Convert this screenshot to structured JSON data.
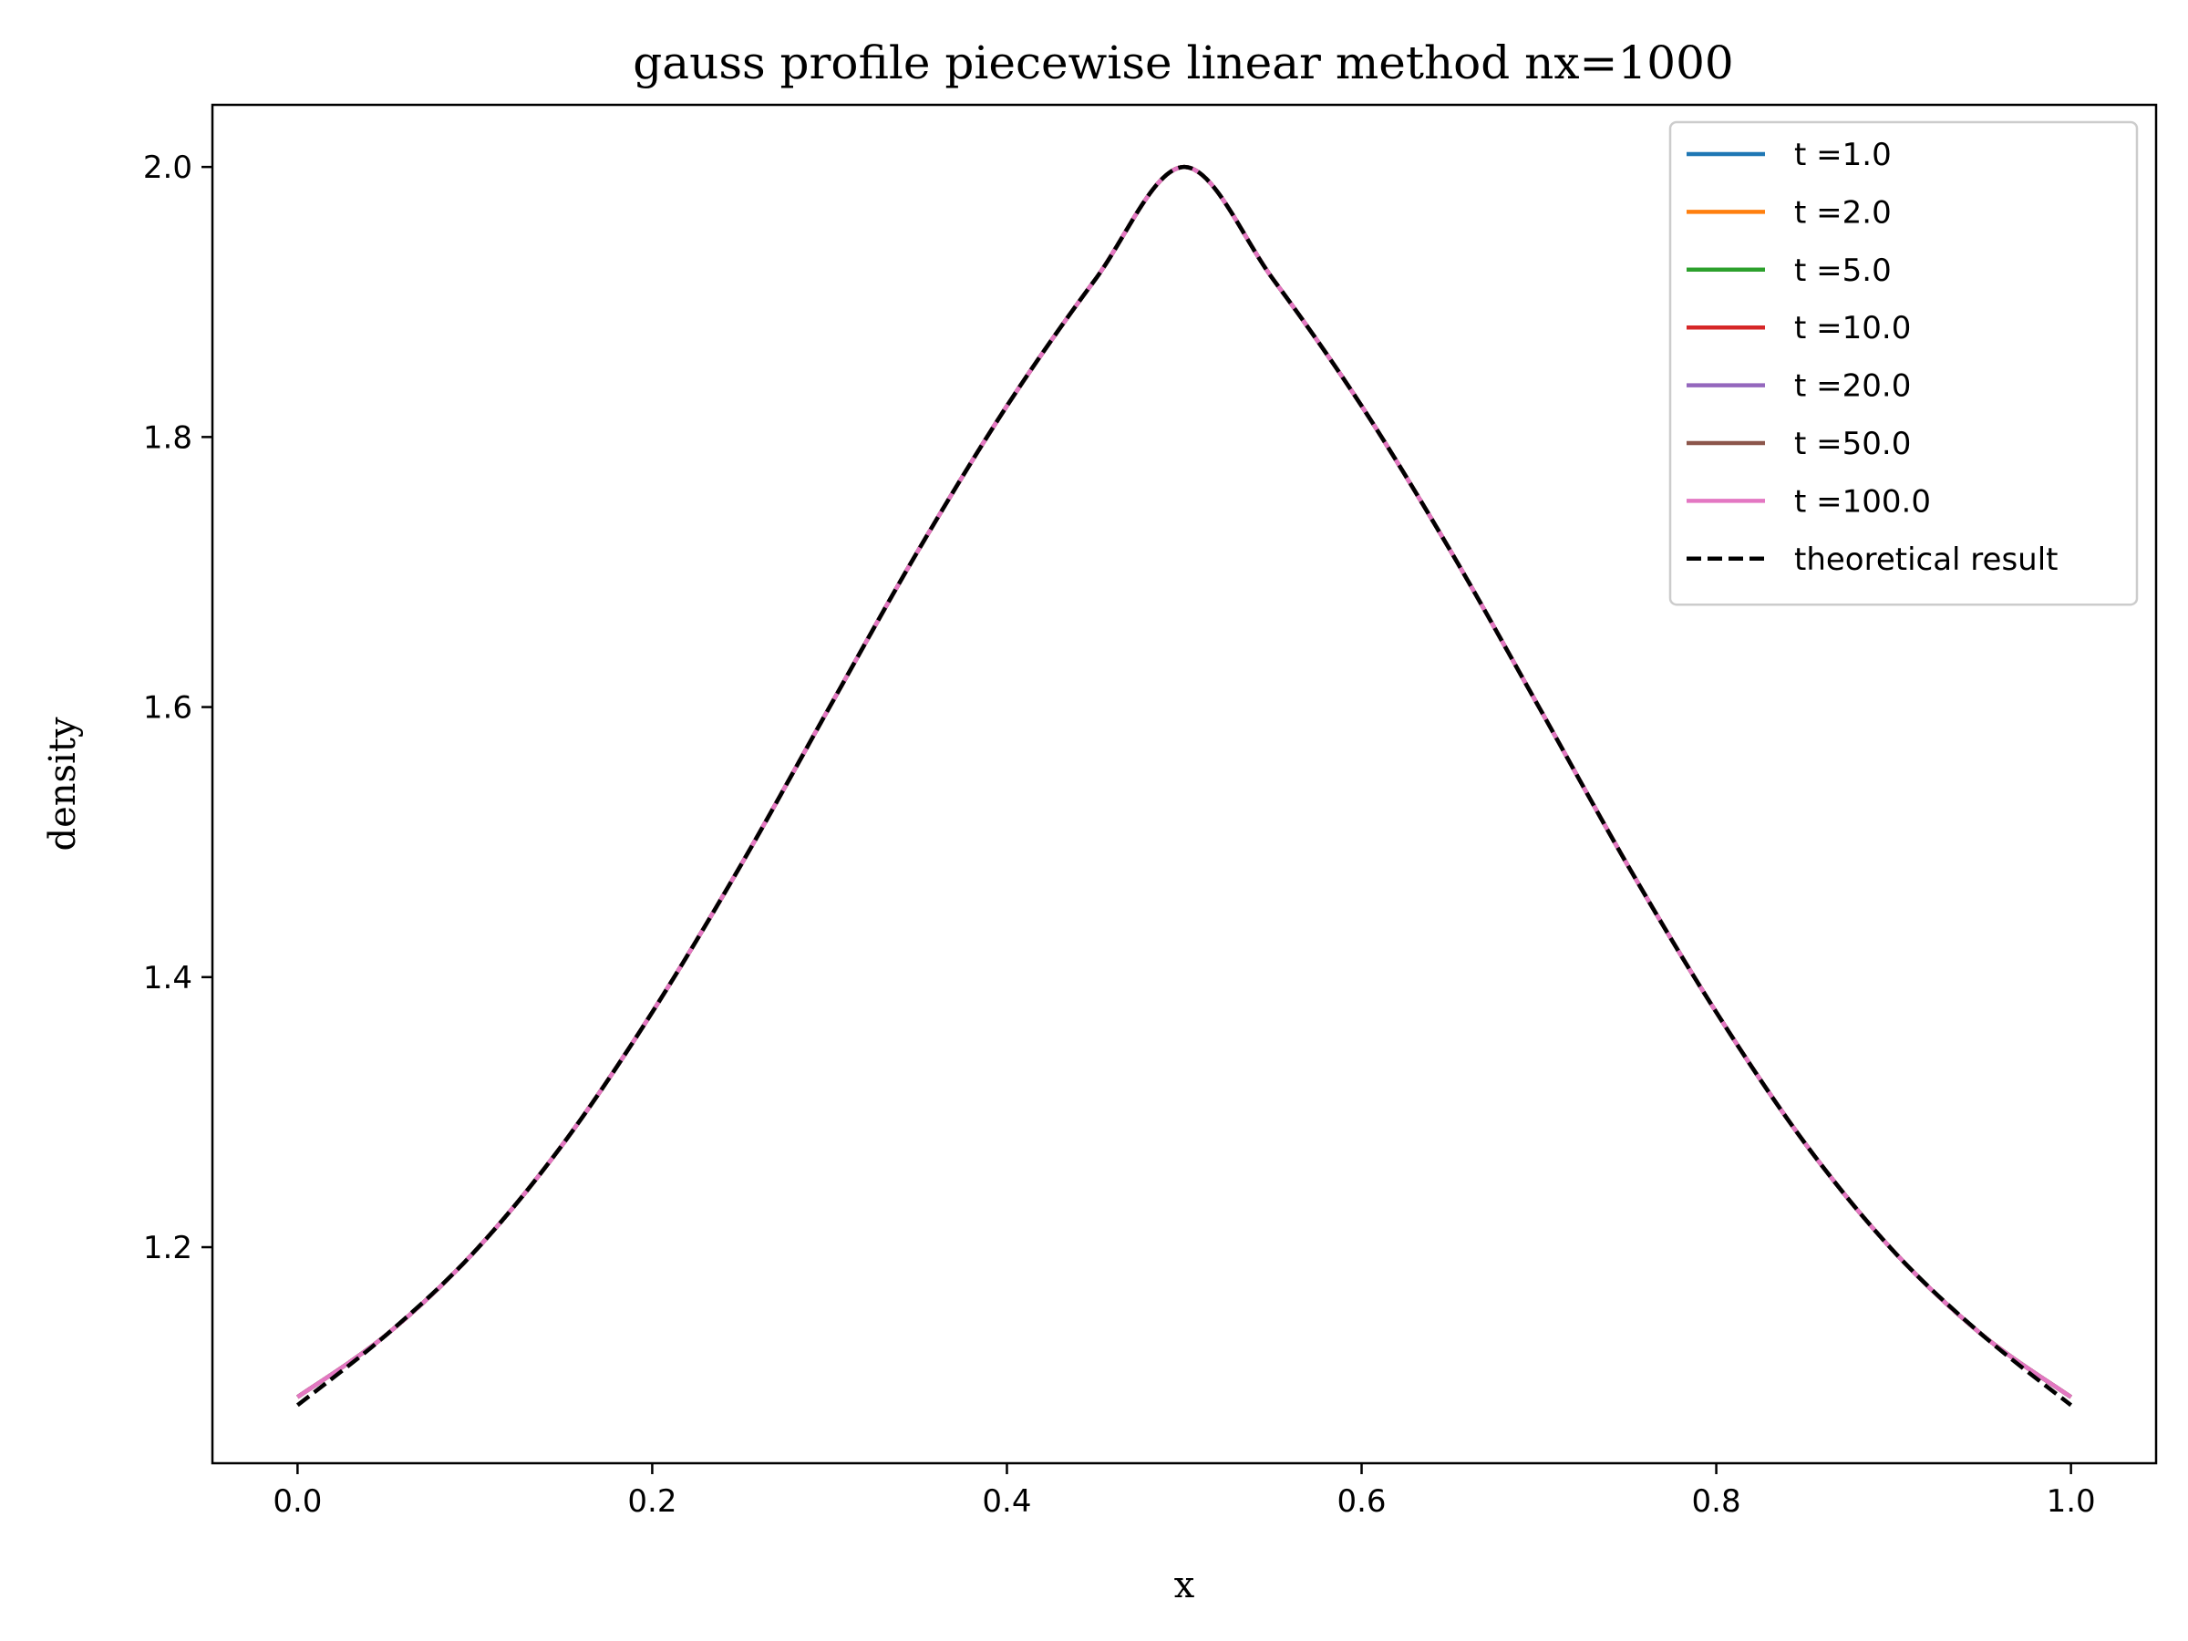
{
  "chart_data": {
    "type": "line",
    "title": "gauss profile piecewise linear method nx=1000",
    "xlabel": "x",
    "ylabel": "density",
    "xlim": [
      -0.048,
      1.048
    ],
    "ylim": [
      1.04,
      2.046
    ],
    "xticks": [
      "0.0",
      "0.2",
      "0.4",
      "0.6",
      "0.8",
      "1.0"
    ],
    "yticks": [
      "1.2",
      "1.4",
      "1.6",
      "1.8",
      "2.0"
    ],
    "grid": false,
    "legend_position": "top-right",
    "x": [
      0.0,
      0.05,
      0.1,
      0.15,
      0.2,
      0.25,
      0.3,
      0.35,
      0.4,
      0.45,
      0.5,
      0.55,
      0.6,
      0.65,
      0.7,
      0.75,
      0.8,
      0.85,
      0.9,
      0.95,
      1.0
    ],
    "series": [
      {
        "name": "t =1.0",
        "color": "#1f77b4",
        "style": "solid",
        "values": [
          1.089,
          1.135,
          1.197,
          1.277,
          1.374,
          1.483,
          1.6,
          1.716,
          1.823,
          1.917,
          2.0,
          1.917,
          1.823,
          1.716,
          1.6,
          1.483,
          1.374,
          1.277,
          1.197,
          1.135,
          1.089
        ]
      },
      {
        "name": "t =2.0",
        "color": "#ff7f0e",
        "style": "solid",
        "values": [
          1.089,
          1.135,
          1.197,
          1.277,
          1.374,
          1.483,
          1.6,
          1.716,
          1.823,
          1.917,
          2.0,
          1.917,
          1.823,
          1.716,
          1.6,
          1.483,
          1.374,
          1.277,
          1.197,
          1.135,
          1.089
        ]
      },
      {
        "name": "t =5.0",
        "color": "#2ca02c",
        "style": "solid",
        "values": [
          1.089,
          1.135,
          1.197,
          1.277,
          1.374,
          1.483,
          1.6,
          1.716,
          1.823,
          1.917,
          2.0,
          1.917,
          1.823,
          1.716,
          1.6,
          1.483,
          1.374,
          1.277,
          1.197,
          1.135,
          1.089
        ]
      },
      {
        "name": "t =10.0",
        "color": "#d62728",
        "style": "solid",
        "values": [
          1.089,
          1.135,
          1.197,
          1.277,
          1.374,
          1.483,
          1.6,
          1.716,
          1.823,
          1.917,
          2.0,
          1.917,
          1.823,
          1.716,
          1.6,
          1.483,
          1.374,
          1.277,
          1.197,
          1.135,
          1.089
        ]
      },
      {
        "name": "t =20.0",
        "color": "#9467bd",
        "style": "solid",
        "values": [
          1.089,
          1.135,
          1.197,
          1.277,
          1.374,
          1.483,
          1.6,
          1.716,
          1.823,
          1.917,
          2.0,
          1.917,
          1.823,
          1.716,
          1.6,
          1.483,
          1.374,
          1.277,
          1.197,
          1.135,
          1.089
        ]
      },
      {
        "name": "t =50.0",
        "color": "#8c564b",
        "style": "solid",
        "values": [
          1.089,
          1.135,
          1.197,
          1.277,
          1.374,
          1.483,
          1.6,
          1.716,
          1.823,
          1.917,
          2.0,
          1.917,
          1.823,
          1.716,
          1.6,
          1.483,
          1.374,
          1.277,
          1.197,
          1.135,
          1.089
        ]
      },
      {
        "name": "t =100.0",
        "color": "#e377c2",
        "style": "solid",
        "values": [
          1.089,
          1.135,
          1.197,
          1.277,
          1.374,
          1.483,
          1.6,
          1.716,
          1.823,
          1.917,
          2.0,
          1.917,
          1.823,
          1.716,
          1.6,
          1.483,
          1.374,
          1.277,
          1.197,
          1.135,
          1.089
        ]
      },
      {
        "name": "theoretical result",
        "color": "#000000",
        "style": "dashed",
        "values": [
          1.083,
          1.135,
          1.197,
          1.277,
          1.374,
          1.483,
          1.6,
          1.716,
          1.823,
          1.917,
          2.0,
          1.917,
          1.823,
          1.716,
          1.6,
          1.483,
          1.374,
          1.277,
          1.197,
          1.135,
          1.083
        ]
      }
    ]
  }
}
